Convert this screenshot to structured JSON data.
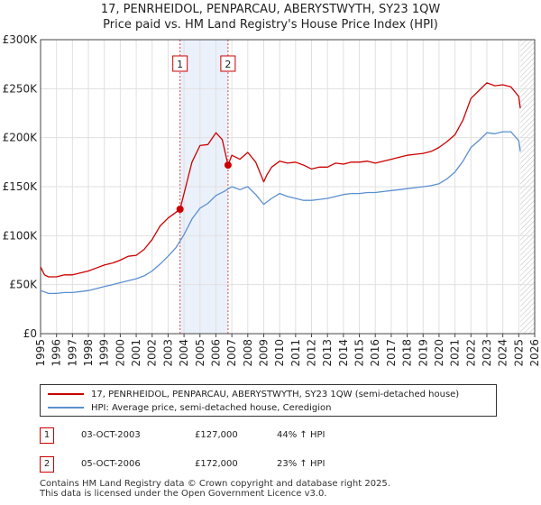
{
  "title_line1": "17, PENRHEIDOL, PENPARCAU, ABERYSTWYTH, SY23 1QW",
  "title_line2": "Price paid vs. HM Land Registry's House Price Index (HPI)",
  "colors": {
    "property": "#cc0000",
    "hpi": "#5b8fd0",
    "grid": "#e0e0e0",
    "shade": "#dbe6f5",
    "future": "#cccccc"
  },
  "chart_data": {
    "type": "line",
    "title": "Price paid vs. HM Land Registry's House Price Index (HPI)",
    "xlim": [
      1995,
      2026
    ],
    "ylim": [
      0,
      300000
    ],
    "x_ticks": [
      "1995",
      "1996",
      "1997",
      "1998",
      "1999",
      "2000",
      "2001",
      "2002",
      "2003",
      "2004",
      "2005",
      "2006",
      "2007",
      "2008",
      "2009",
      "2010",
      "2011",
      "2012",
      "2013",
      "2014",
      "2015",
      "2016",
      "2017",
      "2018",
      "2019",
      "2020",
      "2021",
      "2022",
      "2023",
      "2024",
      "2025",
      "2026"
    ],
    "y_ticks": [
      {
        "value": 0,
        "label": "£0"
      },
      {
        "value": 50000,
        "label": "£50K"
      },
      {
        "value": 100000,
        "label": "£100K"
      },
      {
        "value": 150000,
        "label": "£150K"
      },
      {
        "value": 200000,
        "label": "£200K"
      },
      {
        "value": 250000,
        "label": "£250K"
      },
      {
        "value": 300000,
        "label": "£300K"
      }
    ],
    "shaded_range": [
      2003.75,
      2006.76
    ],
    "hatched_from": 2025.1,
    "series": [
      {
        "name": "17, PENRHEIDOL, PENPARCAU, ABERYSTWYTH, SY23 1QW (semi-detached house)",
        "color": "#cc0000",
        "x": [
          1995.0,
          1995.25,
          1995.5,
          1996.0,
          1996.5,
          1997.0,
          1997.5,
          1998.0,
          1998.5,
          1999.0,
          1999.5,
          2000.0,
          2000.5,
          2001.0,
          2001.5,
          2002.0,
          2002.5,
          2003.0,
          2003.5,
          2003.75,
          2004.0,
          2004.5,
          2005.0,
          2005.5,
          2006.0,
          2006.4,
          2006.76,
          2007.0,
          2007.5,
          2008.0,
          2008.5,
          2009.0,
          2009.2,
          2009.5,
          2010.0,
          2010.5,
          2011.0,
          2011.5,
          2012.0,
          2012.5,
          2013.0,
          2013.5,
          2014.0,
          2014.5,
          2015.0,
          2015.5,
          2016.0,
          2016.5,
          2017.0,
          2017.5,
          2018.0,
          2018.5,
          2019.0,
          2019.5,
          2020.0,
          2020.5,
          2021.0,
          2021.5,
          2022.0,
          2022.5,
          2023.0,
          2023.5,
          2024.0,
          2024.5,
          2025.0,
          2025.1
        ],
        "values": [
          68000,
          60000,
          58000,
          58000,
          60000,
          60000,
          62000,
          64000,
          67000,
          70000,
          72000,
          75000,
          79000,
          80000,
          86000,
          96000,
          110000,
          118000,
          124000,
          127000,
          143000,
          175000,
          192000,
          193000,
          205000,
          198000,
          172000,
          182000,
          178000,
          185000,
          175000,
          155000,
          162000,
          170000,
          176000,
          174000,
          175000,
          172000,
          168000,
          170000,
          170000,
          174000,
          173000,
          175000,
          175000,
          176000,
          174000,
          176000,
          178000,
          180000,
          182000,
          183000,
          184000,
          186000,
          190000,
          196000,
          203000,
          218000,
          240000,
          248000,
          256000,
          253000,
          254000,
          252000,
          242000,
          230000
        ]
      },
      {
        "name": "HPI: Average price, semi-detached house, Ceredigion",
        "color": "#5b8fd0",
        "x": [
          1995.0,
          1995.5,
          1996.0,
          1996.5,
          1997.0,
          1997.5,
          1998.0,
          1998.5,
          1999.0,
          1999.5,
          2000.0,
          2000.5,
          2001.0,
          2001.5,
          2002.0,
          2002.5,
          2003.0,
          2003.5,
          2004.0,
          2004.5,
          2005.0,
          2005.5,
          2006.0,
          2006.5,
          2007.0,
          2007.5,
          2008.0,
          2008.5,
          2009.0,
          2009.5,
          2010.0,
          2010.5,
          2011.0,
          2011.5,
          2012.0,
          2012.5,
          2013.0,
          2013.5,
          2014.0,
          2014.5,
          2015.0,
          2015.5,
          2016.0,
          2016.5,
          2017.0,
          2017.5,
          2018.0,
          2018.5,
          2019.0,
          2019.5,
          2020.0,
          2020.5,
          2021.0,
          2021.5,
          2022.0,
          2022.5,
          2023.0,
          2023.5,
          2024.0,
          2024.5,
          2025.0,
          2025.1
        ],
        "values": [
          44000,
          41000,
          41000,
          42000,
          42000,
          43000,
          44000,
          46000,
          48000,
          50000,
          52000,
          54000,
          56000,
          59000,
          64000,
          71000,
          79000,
          88000,
          101000,
          117000,
          128000,
          133000,
          141000,
          145000,
          150000,
          147000,
          150000,
          142000,
          132000,
          138000,
          143000,
          140000,
          138000,
          136000,
          136000,
          137000,
          138000,
          140000,
          142000,
          143000,
          143000,
          144000,
          144000,
          145000,
          146000,
          147000,
          148000,
          149000,
          150000,
          151000,
          153000,
          158000,
          165000,
          176000,
          190000,
          197000,
          205000,
          204000,
          206000,
          206000,
          197000,
          186000
        ]
      }
    ],
    "markers": [
      {
        "label": "1",
        "x": 2003.75,
        "y": 127000
      },
      {
        "label": "2",
        "x": 2006.76,
        "y": 172000
      }
    ]
  },
  "legend": {
    "property_label": "17, PENRHEIDOL, PENPARCAU, ABERYSTWYTH, SY23 1QW (semi-detached house)",
    "hpi_label": "HPI: Average price, semi-detached house, Ceredigion"
  },
  "transactions": [
    {
      "num": "1",
      "date": "03-OCT-2003",
      "price": "£127,000",
      "hpi": "44% ↑ HPI"
    },
    {
      "num": "2",
      "date": "05-OCT-2006",
      "price": "£172,000",
      "hpi": "23% ↑ HPI"
    }
  ],
  "footer_line1": "Contains HM Land Registry data © Crown copyright and database right 2025.",
  "footer_line2": "This data is licensed under the Open Government Licence v3.0."
}
